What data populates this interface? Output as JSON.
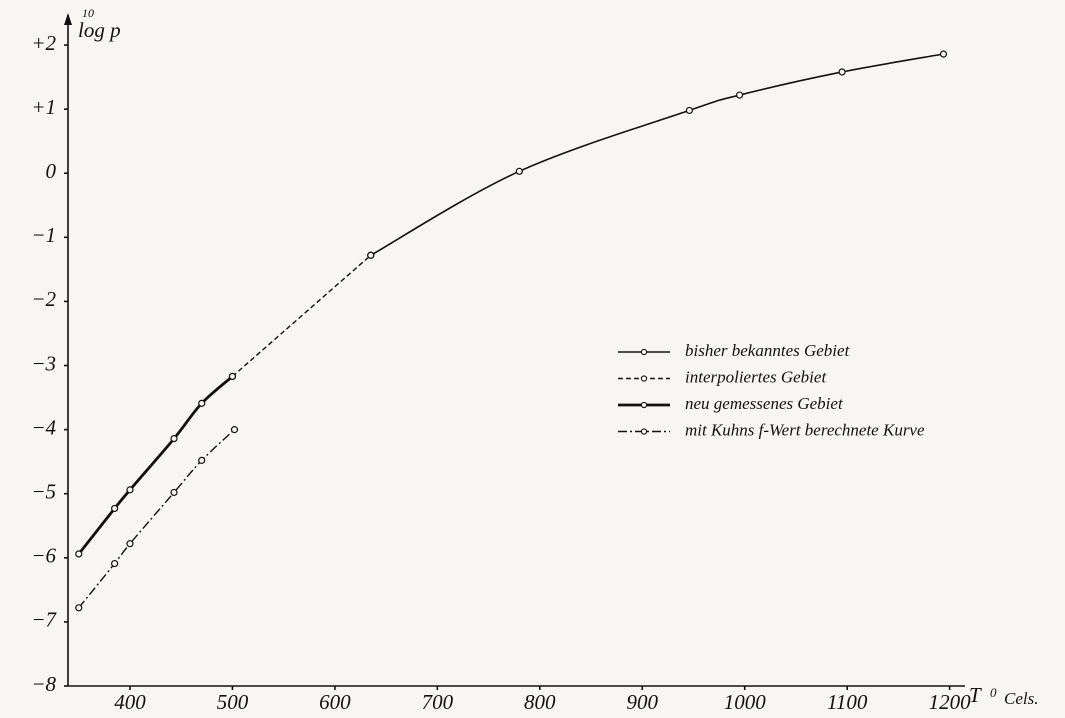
{
  "chart_data": {
    "type": "line",
    "ylabel": {
      "superscript": "10",
      "text": "log p"
    },
    "xlabel": {
      "text": "T",
      "superscript": "0",
      "unit": "Cels."
    },
    "xlim": [
      339.5,
      1215
    ],
    "ylim": [
      -8,
      2.5
    ],
    "xticks": [
      400,
      500,
      600,
      700,
      800,
      900,
      1000,
      1100,
      1200
    ],
    "yticks": [
      {
        "value": 2,
        "label": "+2"
      },
      {
        "value": 1,
        "label": "+1"
      },
      0,
      {
        "value": -1,
        "label": "−1"
      },
      {
        "value": -2,
        "label": "−2"
      },
      {
        "value": -3,
        "label": "−3"
      },
      {
        "value": -4,
        "label": "−4"
      },
      {
        "value": -5,
        "label": "−5"
      },
      {
        "value": -6,
        "label": "−6"
      },
      {
        "value": -7,
        "label": "−7"
      },
      {
        "value": -8,
        "label": "−8"
      }
    ],
    "grid": false,
    "series": [
      {
        "name": "bisher bekanntes Gebiet",
        "color": "#111111",
        "dash": "solid",
        "width": 1.6,
        "x": [
          635,
          780,
          946,
          995,
          1095,
          1194
        ],
        "values": [
          -1.28,
          0.03,
          0.98,
          1.22,
          1.58,
          1.86
        ]
      },
      {
        "name": "interpoliertes Gebiet",
        "color": "#111111",
        "dash": "dashed",
        "width": 1.4,
        "x": [
          500,
          635
        ],
        "values": [
          -3.17,
          -1.28
        ]
      },
      {
        "name": "neu gemessenes Gebiet",
        "color": "#111111",
        "dash": "solid",
        "width": 2.8,
        "x": [
          350,
          385,
          400,
          443,
          470,
          500
        ],
        "values": [
          -5.94,
          -5.23,
          -4.94,
          -4.14,
          -3.59,
          -3.17
        ]
      },
      {
        "name": "mit Kuhns f-Wert berechnete Kurve",
        "color": "#111111",
        "dash": "dashdot",
        "width": 1.4,
        "x": [
          350,
          385,
          400,
          443,
          470,
          502
        ],
        "values": [
          -6.78,
          -6.09,
          -5.78,
          -4.98,
          -4.48,
          -4.0
        ]
      }
    ]
  }
}
